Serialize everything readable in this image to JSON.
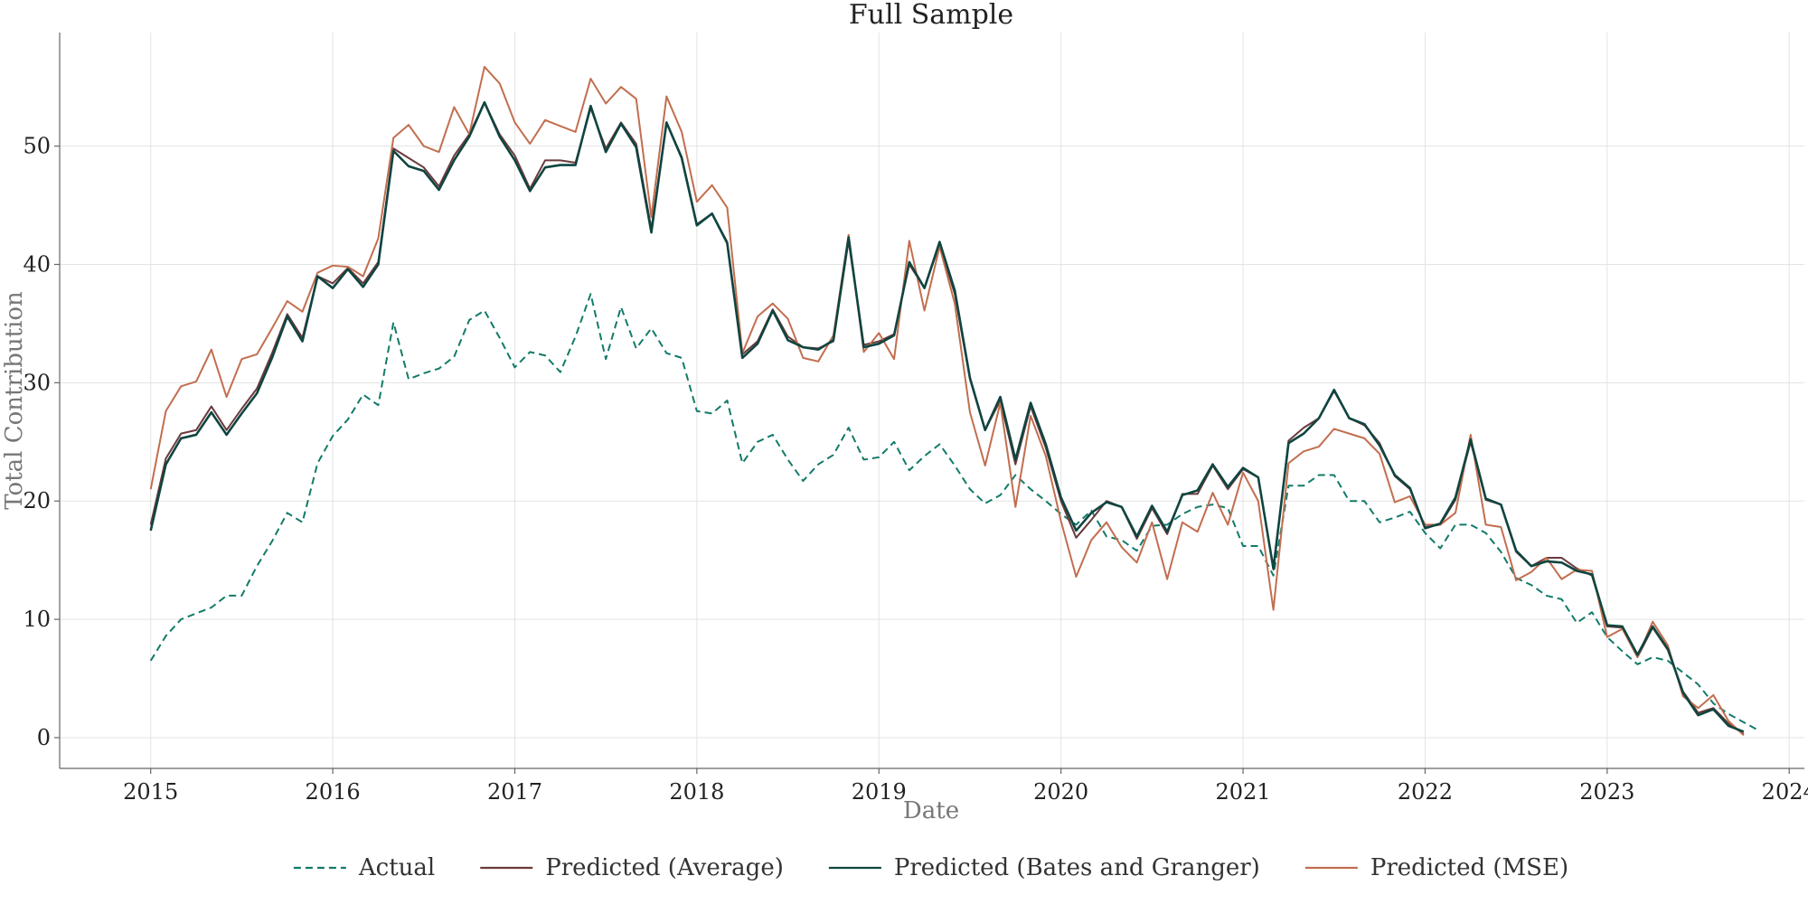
{
  "chart_data": {
    "type": "line",
    "title": "Full Sample",
    "xlabel": "Date",
    "ylabel": "Total Contribution",
    "x_ticks": [
      "2015",
      "2016",
      "2017",
      "2018",
      "2019",
      "2020",
      "2021",
      "2022",
      "2023",
      "2024"
    ],
    "y_ticks": [
      "0",
      "10",
      "20",
      "30",
      "40",
      "50"
    ],
    "xlim": [
      "2014-07",
      "2024-02"
    ],
    "ylim": [
      -2.6,
      59.6
    ],
    "grid": true,
    "legend_position": "bottom",
    "x_start": "2015-01",
    "x_step": "monthly",
    "series": [
      {
        "name": "Actual",
        "color": "#137a69",
        "dash": "dashed",
        "values": [
          6.5,
          8.6,
          10.0,
          10.5,
          11.0,
          12.0,
          12.0,
          14.5,
          16.6,
          19.0,
          18.2,
          23.2,
          25.5,
          26.9,
          29.0,
          28.1,
          35.1,
          30.3,
          30.8,
          31.2,
          32.2,
          35.3,
          36.1,
          33.8,
          31.3,
          32.6,
          32.3,
          30.9,
          33.9,
          37.5,
          32.0,
          36.4,
          32.9,
          34.6,
          32.5,
          32.1,
          27.6,
          27.4,
          28.5,
          23.2,
          25.0,
          25.6,
          23.5,
          21.7,
          23.1,
          23.9,
          26.2,
          23.5,
          23.7,
          25.0,
          22.6,
          23.8,
          24.8,
          23.0,
          21.0,
          19.8,
          20.5,
          22.2,
          21.0,
          20.0,
          18.9,
          18.0,
          19.2,
          17.0,
          16.7,
          15.8,
          17.9,
          18.0,
          18.9,
          19.5,
          19.7,
          19.4,
          16.2,
          16.2,
          13.7,
          21.3,
          21.3,
          22.2,
          22.2,
          20.0,
          20.0,
          18.2,
          18.6,
          19.1,
          17.3,
          16.0,
          18.0,
          18.0,
          17.3,
          15.7,
          13.5,
          12.9,
          12.0,
          11.7,
          9.7,
          10.6,
          8.5,
          7.3,
          6.2,
          6.8,
          6.5,
          5.5,
          4.5,
          2.9,
          2.0,
          1.3,
          0.6
        ]
      },
      {
        "name": "Predicted (Average)",
        "color": "#6b3a3c",
        "dash": "solid",
        "values": [
          18.0,
          23.6,
          25.7,
          26.0,
          28.0,
          26.0,
          27.8,
          29.5,
          32.5,
          35.8,
          33.8,
          39.0,
          38.4,
          39.7,
          38.4,
          40.2,
          49.8,
          49.0,
          48.2,
          46.6,
          49.2,
          51.0,
          53.7,
          51.0,
          49.2,
          46.4,
          48.8,
          48.8,
          48.6,
          53.2,
          49.8,
          52.0,
          50.2,
          43.0,
          52.0,
          49.1,
          43.4,
          44.3,
          41.9,
          32.4,
          33.5,
          36.2,
          33.9,
          33.0,
          32.9,
          33.5,
          42.0,
          33.2,
          33.5,
          34.1,
          40.0,
          38.0,
          41.7,
          37.5,
          30.3,
          26.0,
          28.5,
          23.1,
          28.0,
          24.5,
          20.0,
          16.9,
          18.4,
          20.0,
          19.5,
          16.8,
          19.4,
          17.2,
          20.6,
          20.6,
          23.0,
          21.0,
          22.7,
          22.0,
          14.2,
          25.1,
          26.2,
          27.0,
          29.3,
          27.0,
          26.4,
          24.9,
          22.1,
          21.0,
          17.8,
          18.0,
          20.1,
          25.0,
          20.1,
          19.7,
          15.7,
          14.5,
          15.2,
          15.2,
          14.3,
          13.7,
          9.4,
          9.3,
          6.8,
          9.3,
          7.4,
          3.9,
          2.1,
          2.5,
          1.2,
          0.3
        ]
      },
      {
        "name": "Predicted (Bates and Granger)",
        "color": "#0f4540",
        "dash": "solid",
        "values": [
          17.5,
          23.1,
          25.3,
          25.6,
          27.5,
          25.6,
          27.4,
          29.1,
          32.1,
          35.6,
          33.5,
          39.0,
          38.0,
          39.6,
          38.1,
          40.0,
          49.6,
          48.3,
          47.9,
          46.3,
          48.8,
          50.8,
          53.7,
          50.8,
          48.8,
          46.2,
          48.2,
          48.4,
          48.4,
          53.4,
          49.5,
          51.9,
          49.9,
          42.7,
          52.0,
          49.0,
          43.3,
          44.3,
          41.8,
          32.1,
          33.3,
          36.1,
          33.6,
          33.0,
          32.8,
          33.6,
          42.3,
          33.0,
          33.3,
          34.0,
          40.2,
          38.0,
          41.9,
          37.8,
          30.4,
          26.0,
          28.8,
          23.5,
          28.3,
          24.8,
          20.3,
          17.5,
          19.0,
          19.9,
          19.5,
          17.0,
          19.6,
          17.4,
          20.5,
          20.9,
          23.1,
          21.2,
          22.8,
          22.0,
          14.3,
          24.9,
          25.7,
          27.0,
          29.4,
          27.0,
          26.5,
          24.7,
          22.2,
          21.1,
          17.7,
          18.1,
          20.3,
          25.2,
          20.2,
          19.7,
          15.8,
          14.5,
          14.9,
          14.8,
          14.1,
          13.8,
          9.5,
          9.4,
          7.0,
          9.4,
          7.5,
          3.8,
          1.9,
          2.4,
          1.0,
          0.5
        ]
      },
      {
        "name": "Predicted (MSE)",
        "color": "#c26e4f",
        "dash": "solid",
        "values": [
          21.0,
          27.6,
          29.7,
          30.1,
          32.8,
          28.8,
          32.0,
          32.4,
          34.6,
          36.9,
          36.0,
          39.3,
          39.9,
          39.8,
          39.0,
          42.2,
          50.7,
          51.8,
          50.0,
          49.5,
          53.3,
          51.0,
          56.7,
          55.3,
          52.0,
          50.2,
          52.2,
          51.7,
          51.2,
          55.7,
          53.6,
          55.0,
          54.0,
          44.0,
          54.2,
          51.2,
          45.3,
          46.7,
          44.8,
          32.5,
          35.6,
          36.7,
          35.4,
          32.1,
          31.8,
          34.0,
          42.5,
          32.6,
          34.2,
          32.0,
          42.0,
          36.1,
          41.5,
          36.7,
          27.5,
          23.0,
          28.3,
          19.5,
          27.2,
          23.8,
          18.3,
          13.6,
          16.7,
          18.2,
          16.1,
          14.8,
          18.2,
          13.4,
          18.2,
          17.4,
          20.7,
          18.0,
          22.4,
          20.0,
          10.8,
          23.2,
          24.2,
          24.6,
          26.1,
          25.7,
          25.3,
          24.0,
          19.9,
          20.4,
          18.0,
          18.0,
          19.0,
          25.6,
          18.0,
          17.8,
          13.3,
          14.0,
          15.2,
          13.4,
          14.2,
          14.1,
          8.5,
          9.2,
          6.8,
          9.8,
          7.8,
          3.5,
          2.5,
          3.6,
          1.4,
          0.2
        ]
      }
    ]
  }
}
